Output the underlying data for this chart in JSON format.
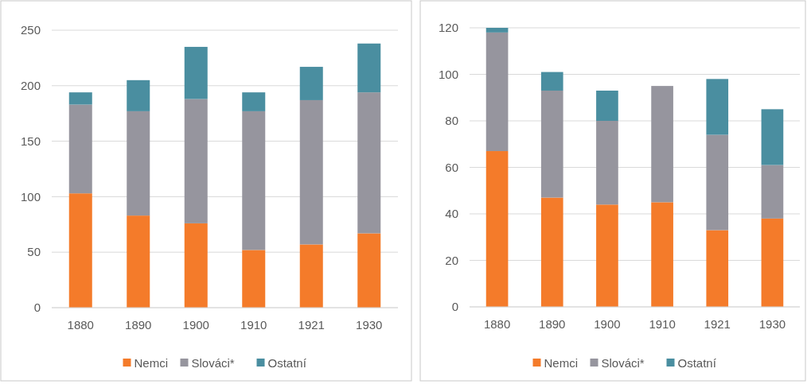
{
  "chart_data": [
    {
      "type": "bar",
      "stacked": true,
      "categories": [
        "1880",
        "1890",
        "1900",
        "1910",
        "1921",
        "1930"
      ],
      "ylim": [
        0,
        250
      ],
      "yticks": [
        0,
        50,
        100,
        150,
        200,
        250
      ],
      "grid": "y",
      "legend": "bottom",
      "series": [
        {
          "name": "Nemci",
          "color": "#f47b2a",
          "values": [
            103,
            83,
            76,
            52,
            57,
            67
          ]
        },
        {
          "name": "Slováci*",
          "color": "#96959e",
          "values": [
            80,
            94,
            112,
            125,
            130,
            127
          ]
        },
        {
          "name": "Ostatní",
          "color": "#4a8ea0",
          "values": [
            11,
            28,
            47,
            17,
            30,
            44
          ]
        }
      ]
    },
    {
      "type": "bar",
      "stacked": true,
      "categories": [
        "1880",
        "1890",
        "1900",
        "1910",
        "1921",
        "1930"
      ],
      "ylim": [
        0,
        120
      ],
      "yticks": [
        0,
        20,
        40,
        60,
        80,
        100,
        120
      ],
      "grid": "y",
      "legend": "bottom",
      "series": [
        {
          "name": "Nemci",
          "color": "#f47b2a",
          "values": [
            67,
            47,
            44,
            45,
            33,
            38
          ]
        },
        {
          "name": "Slováci*",
          "color": "#96959e",
          "values": [
            51,
            46,
            36,
            50,
            41,
            23
          ]
        },
        {
          "name": "Ostatní",
          "color": "#4a8ea0",
          "values": [
            2,
            8,
            13,
            0,
            24,
            24
          ]
        }
      ]
    }
  ]
}
